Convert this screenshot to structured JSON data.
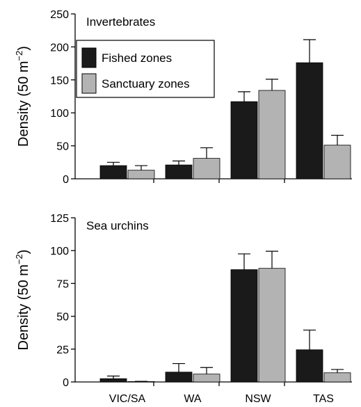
{
  "chart_data": [
    {
      "type": "bar",
      "title": "Invertebrates",
      "ylabel_main": "Density (50 m",
      "ylabel_exp": "−2",
      "ylabel_close": ")",
      "categories": [
        "VIC/SA",
        "WA",
        "NSW",
        "TAS"
      ],
      "ylim": [
        0,
        250
      ],
      "yticks": [
        0,
        50,
        100,
        150,
        200,
        250
      ],
      "series": [
        {
          "name": "Fished zones",
          "color": "#1a1a1a",
          "values": [
            20,
            21,
            117,
            176
          ],
          "error": [
            5,
            6,
            15,
            35
          ]
        },
        {
          "name": "Sanctuary zones",
          "color": "#b3b3b3",
          "values": [
            13,
            31,
            134,
            51
          ],
          "error": [
            7,
            16,
            17,
            15
          ]
        }
      ],
      "legend": "top-left",
      "grid": false
    },
    {
      "type": "bar",
      "title": "Sea urchins",
      "ylabel_main": "Density (50 m",
      "ylabel_exp": "−2",
      "ylabel_close": ")",
      "categories": [
        "VIC/SA",
        "WA",
        "NSW",
        "TAS"
      ],
      "ylim": [
        0,
        125
      ],
      "yticks": [
        0,
        25,
        50,
        75,
        100,
        125
      ],
      "series": [
        {
          "name": "Fished zones",
          "color": "#1a1a1a",
          "values": [
            2.5,
            7.5,
            85.5,
            24.5
          ],
          "error": [
            2,
            6.5,
            12,
            15
          ]
        },
        {
          "name": "Sanctuary zones",
          "color": "#b3b3b3",
          "values": [
            0.3,
            6,
            86.5,
            7
          ],
          "error": [
            0.2,
            5,
            13,
            2.5
          ]
        }
      ],
      "legend": "none",
      "grid": false
    }
  ]
}
